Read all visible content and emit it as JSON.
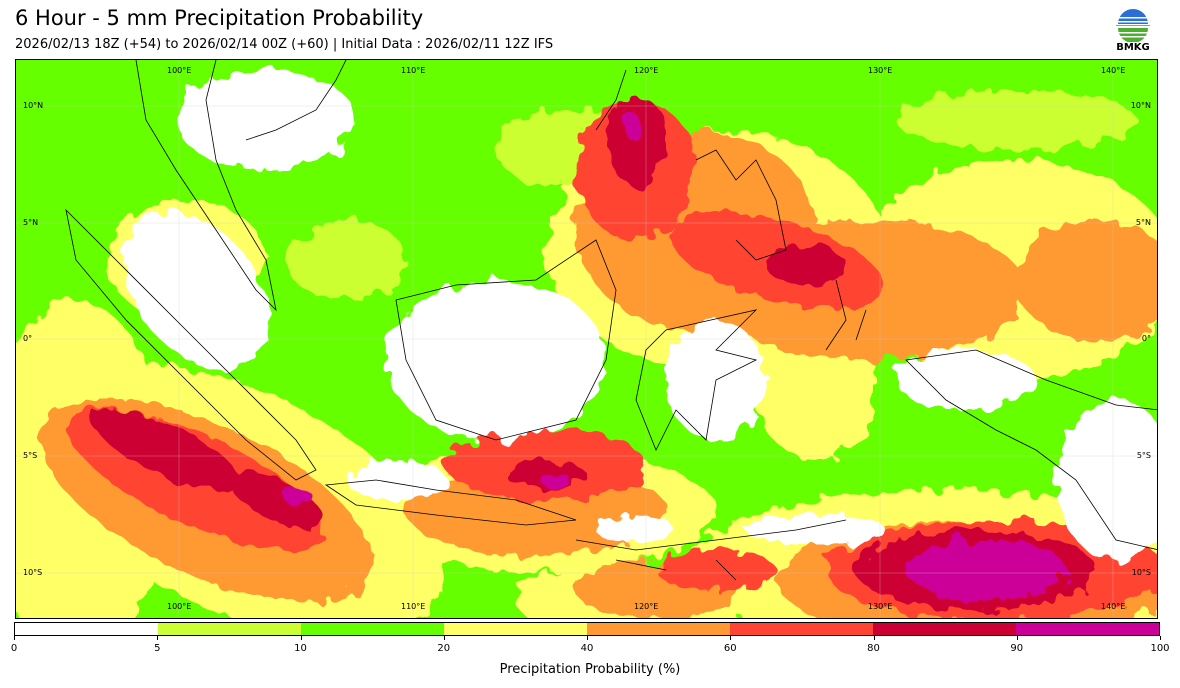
{
  "header": {
    "title": "6 Hour - 5 mm Precipitation Probability",
    "subtitle": "2026/02/13 18Z (+54) to 2026/02/14 00Z (+60) | Initial Data : 2026/02/11 12Z IFS",
    "logo_text": "BMKG"
  },
  "map": {
    "lon_labels_top": [
      "100°E",
      "110°E",
      "120°E",
      "130°E",
      "140°E"
    ],
    "lon_labels_bottom": [
      "100°E",
      "110°E",
      "120°E",
      "130°E",
      "140°E"
    ],
    "lat_labels_left": [
      "10°N",
      "5°N",
      "0°",
      "5°S",
      "10°S"
    ],
    "lat_labels_right": [
      "10°N",
      "5°N",
      "0°",
      "5°S",
      "10°S"
    ]
  },
  "colorbar": {
    "title": "Precipitation Probability (%)",
    "ticks": [
      "0",
      "5",
      "10",
      "20",
      "40",
      "60",
      "80",
      "90",
      "100"
    ],
    "colors": [
      "#ffffff",
      "#ccff33",
      "#66ff00",
      "#ffff66",
      "#ff9933",
      "#ff4433",
      "#cc0033",
      "#cc0099"
    ]
  }
}
